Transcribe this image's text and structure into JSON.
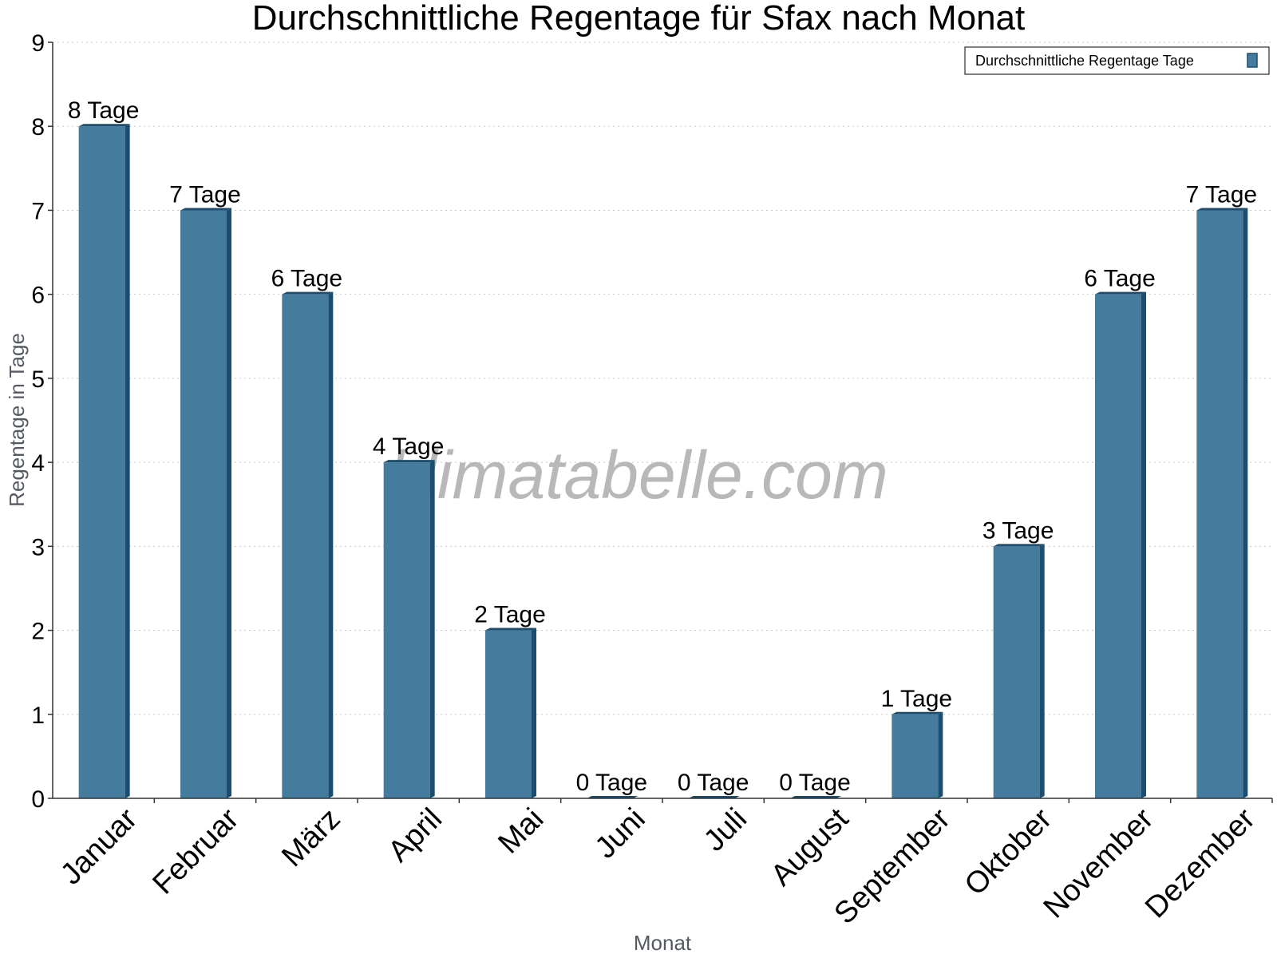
{
  "chart_data": {
    "type": "bar",
    "title": "Durchschnittliche Regentage für Sfax nach Monat",
    "xlabel": "Monat",
    "ylabel": "Regentage in Tage",
    "ylim": [
      0,
      9
    ],
    "yticks": [
      "0",
      "1",
      "2",
      "3",
      "4",
      "5",
      "6",
      "7",
      "8",
      "9"
    ],
    "grid": true,
    "legend_position": "top-right",
    "categories": [
      "Januar",
      "Februar",
      "März",
      "April",
      "Mai",
      "Juni",
      "Juli",
      "August",
      "September",
      "Oktober",
      "November",
      "Dezember"
    ],
    "series": [
      {
        "name": "Durchschnittliche Regentage Tage",
        "values": [
          8,
          7,
          6,
          4,
          2,
          0,
          0,
          0,
          1,
          3,
          6,
          7
        ],
        "data_labels": [
          "8 Tage",
          "7 Tage",
          "6 Tage",
          "4 Tage",
          "2 Tage",
          "0 Tage",
          "0 Tage",
          "0 Tage",
          "1 Tage",
          "3 Tage",
          "6 Tage",
          "7 Tage"
        ],
        "color": "#457b9d",
        "edge_color": "#1d4d6e"
      }
    ]
  },
  "watermark": "klimatabelle.com"
}
